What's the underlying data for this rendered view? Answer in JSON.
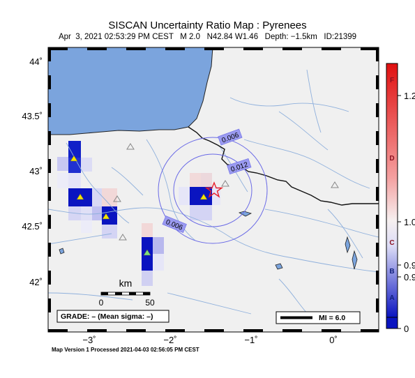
{
  "title": "SISCAN Uncertainty Ratio Map : Pyrenees",
  "subtitle": "Apr  3, 2021 02:53:29 PM CEST   M 2.0   N42.84 W1.46   Depth: −1.5km   ID:21399",
  "footer": "Map Version 1 Processed 2021-04-03 02:56:05 PM CEST",
  "map": {
    "lon_range": [
      -3.5,
      0.6
    ],
    "lat_range": [
      41.6,
      44.1
    ],
    "lat_ticks": [
      "44˚",
      "43.5˚",
      "43˚",
      "42.5˚",
      "42˚"
    ],
    "lon_ticks": [
      "−3˚",
      "−2˚",
      "−1˚",
      "0˚"
    ],
    "contour_labels": [
      "0.006",
      "0.012",
      "0.006"
    ],
    "scale_unit": "km",
    "scale_ticks": [
      "0",
      "50"
    ],
    "grade_text": "GRADE: – (Mean sigma: –)",
    "legend_text": "MI = 6.0",
    "colors": {
      "land": "#f0f0f0",
      "water": "#7ba4dd",
      "rivers": "#8fb0dc",
      "epicenter": "#e8202a"
    }
  },
  "colorbar": {
    "ticks": [
      "1.2",
      "1.0",
      "0.9",
      "0.9",
      "0"
    ],
    "grades": [
      "F",
      "D",
      "C",
      "B",
      "A"
    ]
  }
}
